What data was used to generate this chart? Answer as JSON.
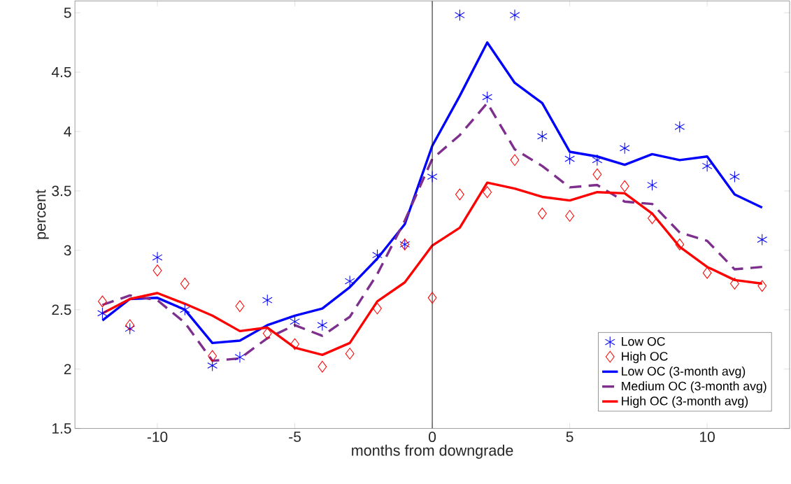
{
  "chart_data": {
    "type": "line",
    "xlabel": "months from downgrade",
    "ylabel": "percent",
    "x": [
      -12,
      -11,
      -10,
      -9,
      -8,
      -7,
      -6,
      -5,
      -4,
      -3,
      -2,
      -1,
      0,
      1,
      2,
      3,
      4,
      5,
      6,
      7,
      8,
      9,
      10,
      11,
      12
    ],
    "series": [
      {
        "name": "Low OC",
        "type": "scatter",
        "marker": "cross",
        "color": "#0000ff",
        "values": [
          2.47,
          2.34,
          2.94,
          2.5,
          2.03,
          2.1,
          2.58,
          2.4,
          2.37,
          2.74,
          2.96,
          3.05,
          3.62,
          4.98,
          4.29,
          4.98,
          3.96,
          3.77,
          3.76,
          3.86,
          3.55,
          4.04,
          3.71,
          3.62,
          3.09
        ]
      },
      {
        "name": "High OC",
        "type": "scatter",
        "marker": "diamond",
        "color": "#ff0000",
        "values": [
          2.57,
          2.37,
          2.83,
          2.72,
          2.11,
          2.53,
          2.3,
          2.21,
          2.02,
          2.13,
          2.51,
          3.05,
          2.6,
          3.47,
          3.49,
          3.76,
          3.31,
          3.29,
          3.64,
          3.54,
          3.27,
          3.05,
          2.81,
          2.72,
          2.7
        ]
      },
      {
        "name": "Low OC (3-month avg)",
        "line_style": "solid",
        "color": "#0000ff",
        "values": [
          2.41,
          2.59,
          2.6,
          2.5,
          2.22,
          2.24,
          2.37,
          2.45,
          2.51,
          2.69,
          2.93,
          3.22,
          3.88,
          4.3,
          4.75,
          4.41,
          4.24,
          3.83,
          3.79,
          3.72,
          3.81,
          3.76,
          3.79,
          3.47,
          3.36
        ]
      },
      {
        "name": "Medium OC (3-month avg)",
        "line_style": "dashed",
        "color": "#7e2f8e",
        "values": [
          2.54,
          2.62,
          2.58,
          2.39,
          2.07,
          2.09,
          2.26,
          2.37,
          2.28,
          2.44,
          2.8,
          3.25,
          3.77,
          3.97,
          4.24,
          3.85,
          3.71,
          3.53,
          3.55,
          3.41,
          3.39,
          3.15,
          3.08,
          2.84,
          2.86
        ]
      },
      {
        "name": "High OC (3-month avg)",
        "line_style": "solid",
        "color": "#ff0000",
        "values": [
          2.47,
          2.59,
          2.64,
          2.55,
          2.45,
          2.32,
          2.35,
          2.18,
          2.12,
          2.22,
          2.57,
          2.73,
          3.04,
          3.19,
          3.57,
          3.52,
          3.45,
          3.42,
          3.49,
          3.48,
          3.31,
          3.03,
          2.86,
          2.75,
          2.72
        ]
      }
    ],
    "xlim": [
      -13,
      13
    ],
    "ylim": [
      1.5,
      5.1
    ],
    "xticks": [
      -10,
      -5,
      0,
      5,
      10
    ],
    "yticks": [
      1.5,
      2,
      2.5,
      3,
      3.5,
      4,
      4.5,
      5
    ],
    "ref_lines": [
      {
        "axis": "x",
        "value": 0,
        "color": "#000000"
      }
    ],
    "grid": false,
    "legend": "bottom right"
  }
}
